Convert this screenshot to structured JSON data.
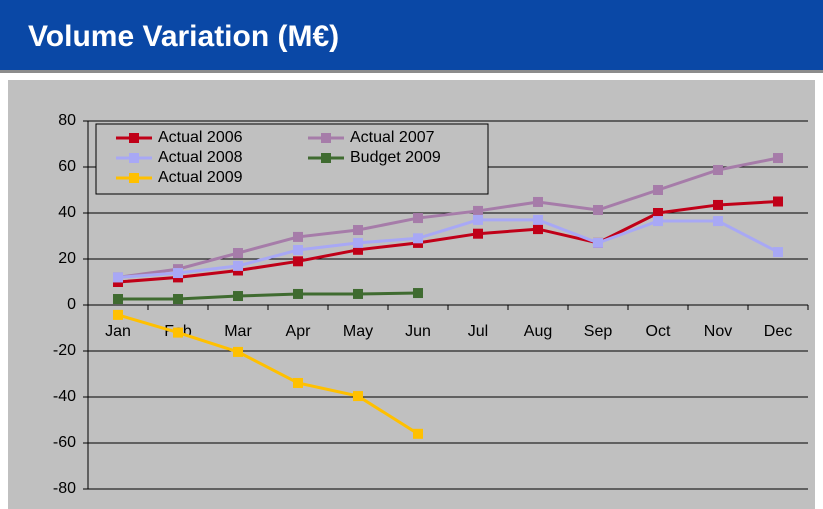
{
  "chart_data": {
    "type": "line",
    "title": "Volume Variation (M€)",
    "categories": [
      "Jan",
      "Feb",
      "Mar",
      "Apr",
      "May",
      "Jun",
      "Jul",
      "Aug",
      "Sep",
      "Oct",
      "Nov",
      "Dec"
    ],
    "series": [
      {
        "name": "Actual 2006",
        "color": "#c00018",
        "values": [
          10,
          12,
          15,
          19,
          24,
          27,
          31,
          33,
          27,
          40,
          43.5,
          45
        ]
      },
      {
        "name": "Actual 2007",
        "color": "#a67ca9",
        "values": [
          12,
          15.6,
          22.6,
          29.6,
          32.6,
          37.8,
          40.9,
          44.8,
          41.3,
          50,
          58.7,
          63.9
        ]
      },
      {
        "name": "Actual 2008",
        "color": "#a8a8f5",
        "values": [
          12,
          13.9,
          17,
          23.9,
          27,
          29,
          37,
          37,
          27,
          36.5,
          36.5,
          23
        ]
      },
      {
        "name": "Budget 2009",
        "color": "#3f6b30",
        "values": [
          2.6,
          2.6,
          3.9,
          4.8,
          4.8,
          5.2,
          null,
          null,
          null,
          null,
          null,
          null
        ]
      },
      {
        "name": "Actual 2009",
        "color": "#ffc000",
        "values": [
          -4.3,
          -12,
          -20.4,
          -33.9,
          -39.6,
          -56,
          null,
          null,
          null,
          null,
          null,
          null
        ]
      }
    ],
    "ylim": [
      -80,
      80
    ],
    "yticks": [
      -80,
      -60,
      -40,
      -20,
      0,
      20,
      40,
      60,
      80
    ],
    "grid": true,
    "legend": "top-left"
  }
}
